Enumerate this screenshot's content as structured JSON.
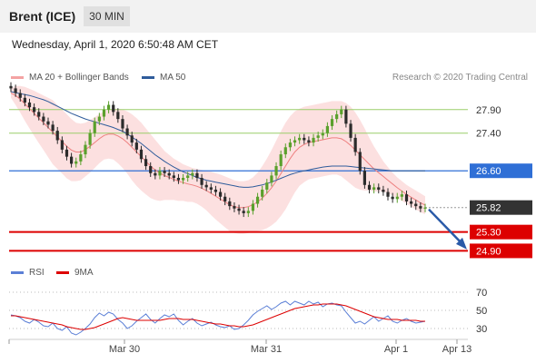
{
  "header": {
    "instrument": "Brent (ICE)",
    "timeframe": "30 MIN"
  },
  "timestamp": "Wednesday, April 1, 2020 6:50:48 AM CET",
  "credit": "Research © 2020 Trading Central",
  "legend": {
    "price": [
      {
        "label": "MA 20 + Bollinger Bands",
        "color": "#f4a3a3"
      },
      {
        "label": "MA 50",
        "color": "#2f5c9b"
      }
    ],
    "rsi": [
      {
        "label": "RSI",
        "color": "#5b7fd6"
      },
      {
        "label": "9MA",
        "color": "#dd0000"
      }
    ]
  },
  "chart_data": [
    {
      "type": "candlestick",
      "ylim": [
        24.6,
        28.3
      ],
      "x_labels": [
        "Mar 30",
        "Mar 31",
        "Apr 1",
        "Apr 13"
      ],
      "levels": [
        {
          "value": 27.9,
          "label": "27.90",
          "kind": "resistance",
          "color": "#9acd6a"
        },
        {
          "value": 27.4,
          "label": "27.40",
          "kind": "resistance",
          "color": "#9acd6a"
        },
        {
          "value": 26.6,
          "label": "26.60",
          "kind": "pivot",
          "color": "#2f6fd6"
        },
        {
          "value": 25.82,
          "label": "25.82",
          "kind": "last",
          "color": "#333333"
        },
        {
          "value": 25.3,
          "label": "25.30",
          "kind": "support",
          "color": "#dd0000"
        },
        {
          "value": 24.9,
          "label": "24.90",
          "kind": "support",
          "color": "#dd0000"
        }
      ],
      "close": [
        28.35,
        28.25,
        28.15,
        28.05,
        27.95,
        27.85,
        27.75,
        27.65,
        27.58,
        27.45,
        27.25,
        27.05,
        26.9,
        26.75,
        26.8,
        26.95,
        27.15,
        27.4,
        27.65,
        27.75,
        27.9,
        28.0,
        27.85,
        27.7,
        27.5,
        27.35,
        27.2,
        27.05,
        26.85,
        26.7,
        26.55,
        26.5,
        26.6,
        26.55,
        26.5,
        26.45,
        26.4,
        26.45,
        26.5,
        26.55,
        26.45,
        26.3,
        26.25,
        26.2,
        26.15,
        26.05,
        25.95,
        25.85,
        25.8,
        25.75,
        25.7,
        25.75,
        25.9,
        26.05,
        26.2,
        26.35,
        26.5,
        26.7,
        26.95,
        27.1,
        27.2,
        27.25,
        27.3,
        27.25,
        27.2,
        27.3,
        27.35,
        27.4,
        27.55,
        27.7,
        27.8,
        27.9,
        27.6,
        27.3,
        27.0,
        26.6,
        26.3,
        26.2,
        26.25,
        26.2,
        26.15,
        26.05,
        26.0,
        26.05,
        26.1,
        25.95,
        25.9,
        25.85,
        25.8,
        25.82
      ],
      "ma20": [
        28.25,
        28.2,
        28.12,
        28.02,
        27.92,
        27.82,
        27.72,
        27.62,
        27.52,
        27.42,
        27.32,
        27.22,
        27.12,
        27.04,
        27.0,
        27.0,
        27.05,
        27.12,
        27.2,
        27.28,
        27.35,
        27.38,
        27.38,
        27.34,
        27.28,
        27.2,
        27.1,
        27.0,
        26.9,
        26.8,
        26.7,
        26.62,
        26.55,
        26.5,
        26.46,
        26.42,
        26.38,
        26.35,
        26.32,
        26.3,
        26.27,
        26.23,
        26.18,
        26.12,
        26.06,
        26.0,
        25.94,
        25.88,
        25.84,
        25.82,
        25.82,
        25.84,
        25.88,
        25.94,
        26.02,
        26.12,
        26.24,
        26.38,
        26.54,
        26.7,
        26.86,
        27.0,
        27.1,
        27.16,
        27.2,
        27.22,
        27.24,
        27.26,
        27.28,
        27.3,
        27.3,
        27.28,
        27.22,
        27.14,
        27.04,
        26.94,
        26.84,
        26.74,
        26.64,
        26.56,
        26.48,
        26.4,
        26.32,
        26.24,
        26.17,
        26.1,
        26.04,
        25.98,
        25.92,
        25.87
      ],
      "bb_upper": [
        28.35,
        28.4,
        28.4,
        28.38,
        28.34,
        28.3,
        28.25,
        28.2,
        28.15,
        28.1,
        28.0,
        27.9,
        27.8,
        27.7,
        27.62,
        27.6,
        27.62,
        27.68,
        27.74,
        27.8,
        27.86,
        27.9,
        27.92,
        27.92,
        27.9,
        27.86,
        27.8,
        27.72,
        27.62,
        27.5,
        27.38,
        27.26,
        27.14,
        27.02,
        26.94,
        26.86,
        26.8,
        26.74,
        26.7,
        26.66,
        26.64,
        26.62,
        26.6,
        26.58,
        26.55,
        26.52,
        26.48,
        26.44,
        26.4,
        26.38,
        26.38,
        26.4,
        26.46,
        26.56,
        26.7,
        26.86,
        27.04,
        27.24,
        27.44,
        27.62,
        27.76,
        27.86,
        27.92,
        27.96,
        27.98,
        28.0,
        28.02,
        28.04,
        28.06,
        28.08,
        28.08,
        28.08,
        28.04,
        27.96,
        27.84,
        27.68,
        27.5,
        27.3,
        27.12,
        26.96,
        26.8,
        26.68,
        26.56,
        26.46,
        26.38,
        26.3,
        26.24,
        26.18,
        26.12,
        26.06
      ],
      "bb_lower": [
        28.15,
        28.0,
        27.84,
        27.66,
        27.5,
        27.34,
        27.19,
        27.04,
        26.89,
        26.74,
        26.64,
        26.54,
        26.44,
        26.38,
        26.38,
        26.4,
        26.48,
        26.56,
        26.66,
        26.76,
        26.84,
        26.86,
        26.84,
        26.76,
        26.66,
        26.54,
        26.4,
        26.28,
        26.18,
        26.1,
        26.02,
        25.98,
        25.96,
        25.98,
        25.98,
        25.98,
        25.96,
        25.96,
        25.94,
        25.94,
        25.9,
        25.84,
        25.76,
        25.66,
        25.57,
        25.48,
        25.4,
        25.32,
        25.28,
        25.26,
        25.26,
        25.28,
        25.3,
        25.32,
        25.34,
        25.38,
        25.44,
        25.52,
        25.64,
        25.78,
        25.96,
        26.14,
        26.28,
        26.36,
        26.42,
        26.44,
        26.46,
        26.48,
        26.5,
        26.52,
        26.52,
        26.48,
        26.4,
        26.32,
        26.24,
        26.2,
        26.18,
        26.18,
        26.16,
        26.16,
        26.16,
        26.12,
        26.08,
        26.02,
        25.96,
        25.9,
        25.84,
        25.78,
        25.72,
        25.68
      ],
      "ma50": [
        28.28,
        28.26,
        28.24,
        28.22,
        28.2,
        28.17,
        28.14,
        28.11,
        28.07,
        28.02,
        27.97,
        27.92,
        27.87,
        27.82,
        27.78,
        27.74,
        27.7,
        27.67,
        27.64,
        27.61,
        27.58,
        27.55,
        27.52,
        27.48,
        27.44,
        27.38,
        27.32,
        27.25,
        27.18,
        27.1,
        27.02,
        26.94,
        26.87,
        26.8,
        26.74,
        26.68,
        26.63,
        26.58,
        26.54,
        26.5,
        26.46,
        26.43,
        26.4,
        26.38,
        26.36,
        26.34,
        26.32,
        26.3,
        26.28,
        26.26,
        26.25,
        26.25,
        26.26,
        26.28,
        26.3,
        26.33,
        26.36,
        26.4,
        26.44,
        26.48,
        26.52,
        26.55,
        26.58,
        26.6,
        26.62,
        26.64,
        26.66,
        26.68,
        26.69,
        26.7,
        26.7,
        26.7,
        26.7,
        26.69,
        26.68,
        26.67,
        26.66,
        26.65,
        26.64,
        26.63,
        26.62,
        26.61,
        26.6,
        26.6,
        26.6,
        26.6,
        26.6,
        26.6,
        26.6,
        26.6
      ],
      "forecast": {
        "from": 25.82,
        "to": 24.95
      }
    },
    {
      "type": "line",
      "title": "RSI",
      "ylim": [
        20,
        80
      ],
      "y_ticks": [
        70,
        50,
        30
      ],
      "series": [
        {
          "name": "RSI",
          "values": [
            45,
            44,
            42,
            38,
            36,
            40,
            37,
            33,
            32,
            36,
            30,
            28,
            32,
            25,
            23,
            26,
            30,
            35,
            42,
            47,
            44,
            48,
            46,
            40,
            36,
            30,
            33,
            38,
            42,
            46,
            40,
            36,
            41,
            45,
            43,
            46,
            39,
            34,
            38,
            41,
            36,
            33,
            35,
            37,
            34,
            32,
            31,
            33,
            29,
            30,
            34,
            39,
            45,
            49,
            52,
            55,
            51,
            54,
            58,
            60,
            56,
            60,
            58,
            56,
            60,
            57,
            59,
            54,
            57,
            58,
            56,
            55,
            48,
            42,
            36,
            38,
            35,
            39,
            43,
            38,
            41,
            44,
            38,
            36,
            39,
            41,
            38,
            36,
            37,
            38
          ]
        },
        {
          "name": "9MA",
          "values": [
            44,
            44,
            43,
            42,
            41,
            40,
            39,
            38,
            37,
            36,
            35,
            34,
            32,
            31,
            30,
            29,
            29,
            30,
            31,
            33,
            35,
            37,
            39,
            41,
            42,
            41,
            40,
            39,
            39,
            39,
            39,
            39,
            39,
            40,
            41,
            41,
            41,
            40,
            40,
            40,
            39,
            38,
            37,
            36,
            35,
            35,
            34,
            33,
            33,
            32,
            32,
            33,
            34,
            36,
            38,
            40,
            42,
            44,
            46,
            48,
            50,
            52,
            53,
            54,
            55,
            56,
            56,
            57,
            57,
            57,
            57,
            56,
            55,
            53,
            51,
            49,
            47,
            45,
            43,
            42,
            41,
            40,
            40,
            40,
            39,
            39,
            39,
            39,
            38,
            38
          ]
        }
      ]
    }
  ]
}
